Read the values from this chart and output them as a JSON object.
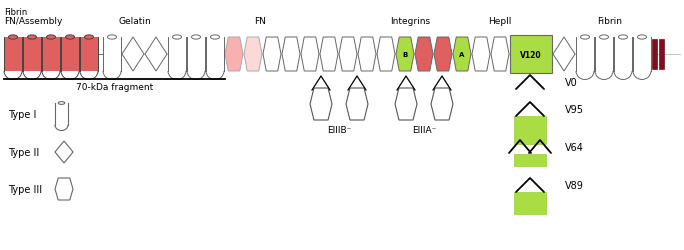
{
  "fig_width": 6.84,
  "fig_height": 2.51,
  "dpi": 100,
  "bg_color": "#ffffff",
  "colors": {
    "red_fill": "#e06060",
    "pink_fill": "#f8b0b0",
    "pink_light": "#fcd8d8",
    "white_fill": "#ffffff",
    "green_fill": "#aadd44",
    "dark_red": "#7a1020",
    "edge": "#666666",
    "edge_dark": "#444444"
  },
  "labels": {
    "fibrin_top": "Fibrin",
    "fn_assembly": "FN/Assembly",
    "gelatin": "Gelatin",
    "fn": "FN",
    "integrins": "Integrins",
    "hepII": "HepII",
    "fibrin_right": "Fibrin",
    "fragment70": "70-kDa fragment",
    "typeI": "Type I",
    "typeII": "Type II",
    "typeIII": "Type III",
    "EIIIB": "EIIIB⁻",
    "EIIIA": "EIIIA⁻",
    "V0": "V0",
    "V95": "V95",
    "V64": "V64",
    "V89": "V89"
  }
}
